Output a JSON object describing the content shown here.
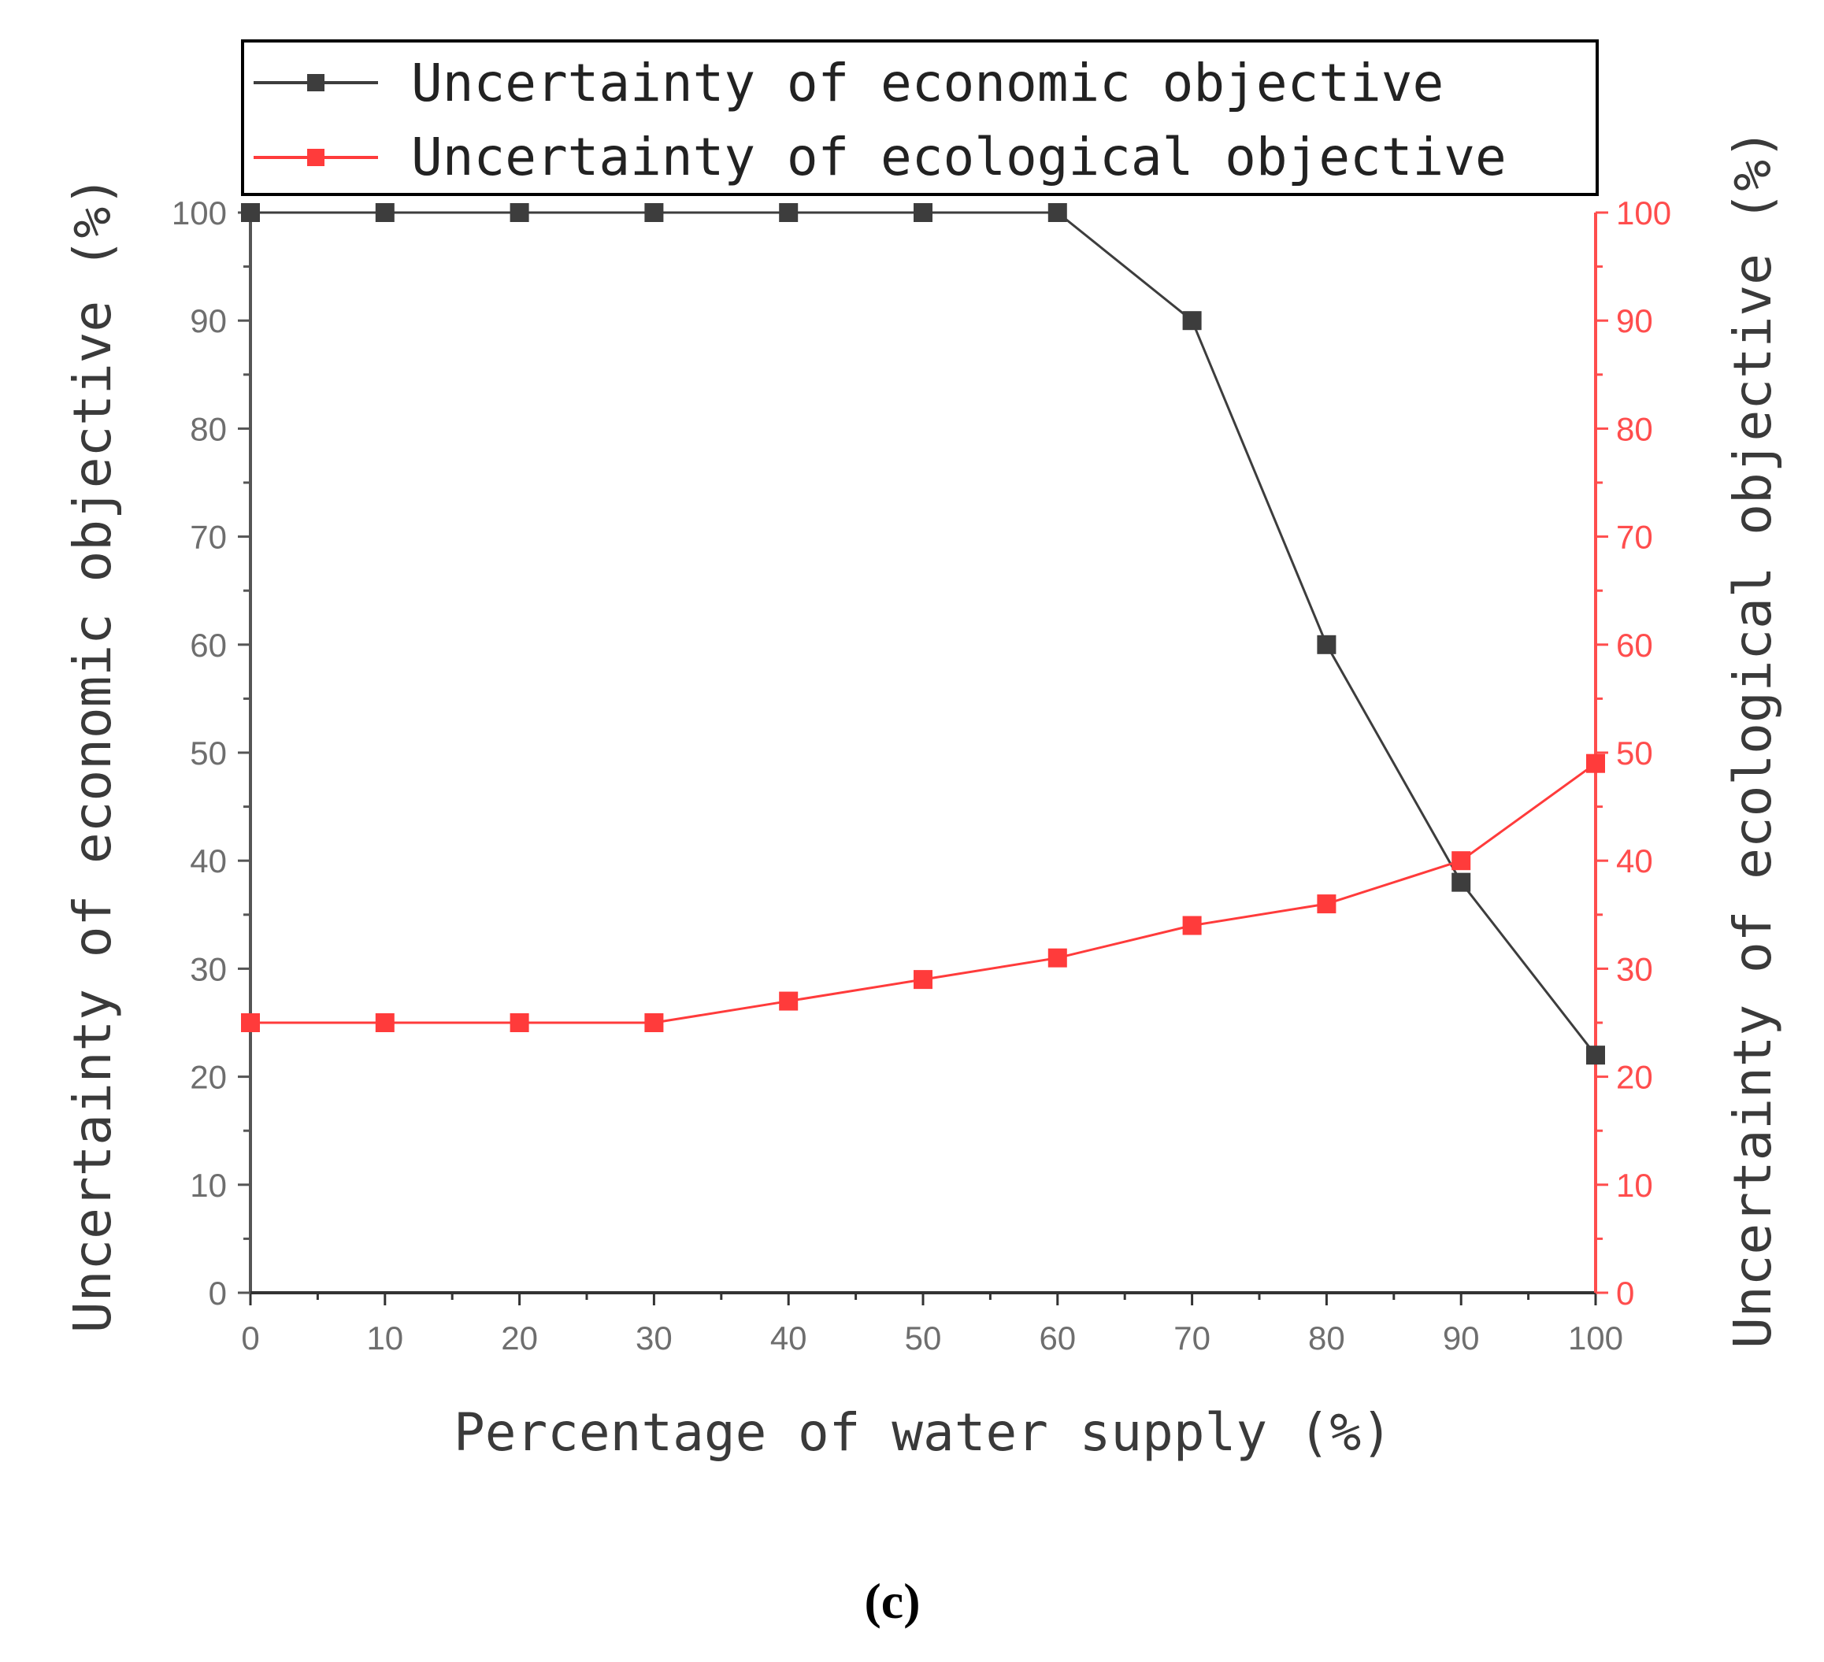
{
  "chart_data": {
    "type": "line",
    "title": "",
    "xlabel": "Percentage of water supply (%)",
    "ylabel_left": "Uncertainty of economic objective (%)",
    "ylabel_right": "Uncertainty of ecological objective (%)",
    "x": [
      0,
      10,
      20,
      30,
      40,
      50,
      60,
      70,
      80,
      90,
      100
    ],
    "xlim": [
      0,
      100
    ],
    "ylim": [
      0,
      100
    ],
    "x_ticks": [
      "0",
      "10",
      "20",
      "30",
      "40",
      "50",
      "60",
      "70",
      "80",
      "90",
      "100"
    ],
    "y_ticks": [
      "0",
      "10",
      "20",
      "30",
      "40",
      "50",
      "60",
      "70",
      "80",
      "90",
      "100"
    ],
    "series": [
      {
        "name": "Uncertainty of economic objective",
        "axis": "left",
        "color": "#3d3d3d",
        "values": [
          100,
          100,
          100,
          100,
          100,
          100,
          100,
          90,
          60,
          38,
          22
        ]
      },
      {
        "name": "Uncertainty of ecological objective",
        "axis": "right",
        "color": "#ff3b3b",
        "values": [
          25,
          25,
          25,
          25,
          27,
          29,
          31,
          34,
          36,
          40,
          49
        ]
      }
    ],
    "legend_position": "top",
    "grid": false
  },
  "caption": "(c)"
}
